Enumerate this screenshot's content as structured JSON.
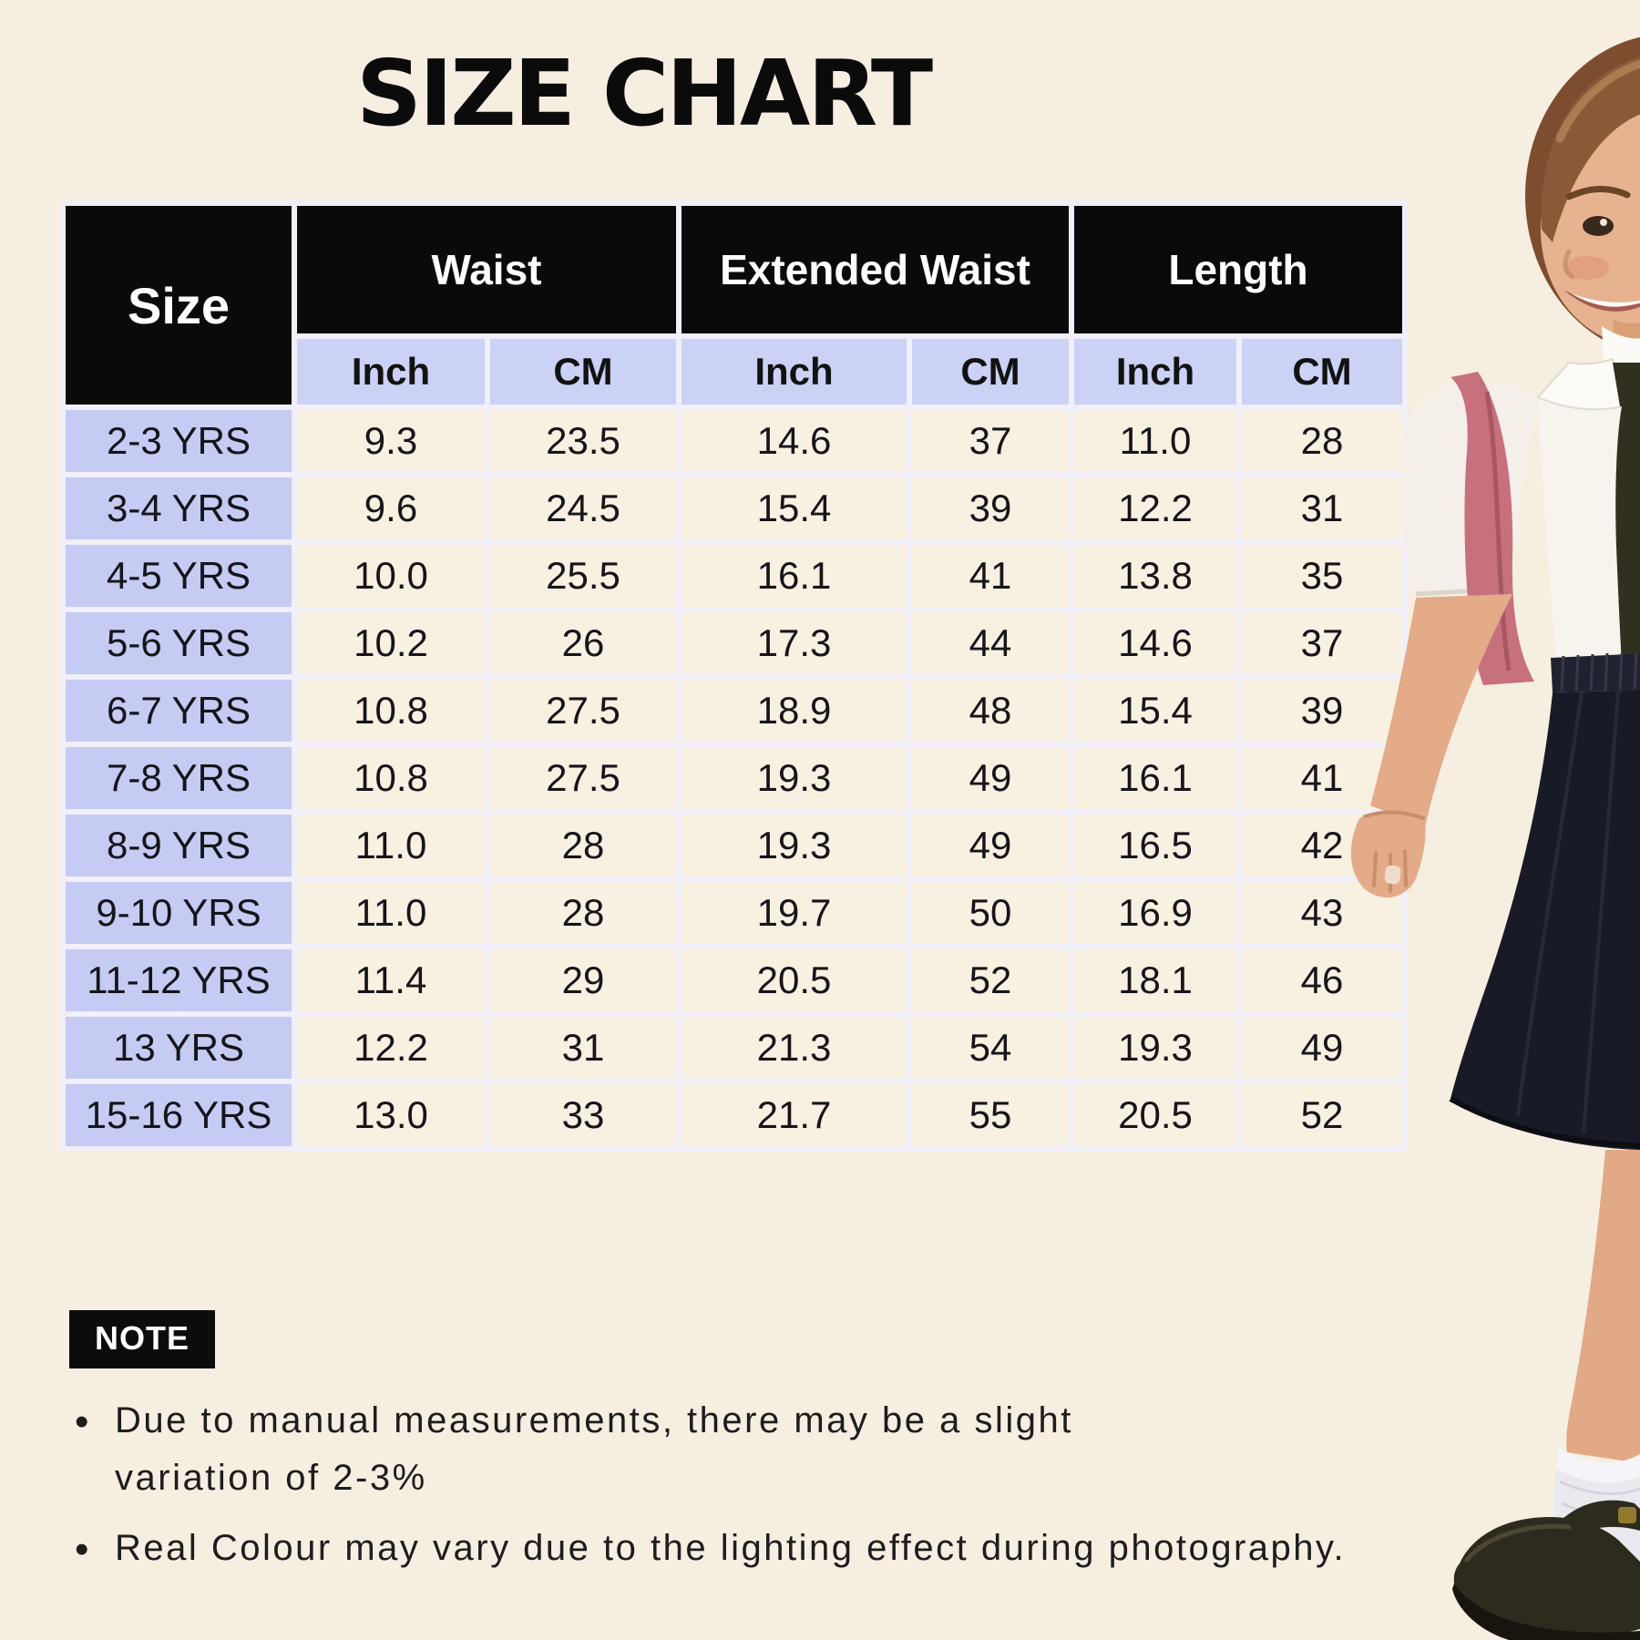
{
  "page": {
    "title": "SIZE CHART",
    "background_color": "#f6efe1"
  },
  "table": {
    "corner_label": "Size",
    "groups": [
      {
        "label": "Waist"
      },
      {
        "label": "Extended Waist"
      },
      {
        "label": "Length"
      }
    ],
    "units": [
      "Inch",
      "CM",
      "Inch",
      "CM",
      "Inch",
      "CM"
    ],
    "rows": [
      {
        "size": "2-3 YRS",
        "values": [
          "9.3",
          "23.5",
          "14.6",
          "37",
          "11.0",
          "28"
        ]
      },
      {
        "size": "3-4 YRS",
        "values": [
          "9.6",
          "24.5",
          "15.4",
          "39",
          "12.2",
          "31"
        ]
      },
      {
        "size": "4-5 YRS",
        "values": [
          "10.0",
          "25.5",
          "16.1",
          "41",
          "13.8",
          "35"
        ]
      },
      {
        "size": "5-6 YRS",
        "values": [
          "10.2",
          "26",
          "17.3",
          "44",
          "14.6",
          "37"
        ]
      },
      {
        "size": "6-7 YRS",
        "values": [
          "10.8",
          "27.5",
          "18.9",
          "48",
          "15.4",
          "39"
        ]
      },
      {
        "size": "7-8 YRS",
        "values": [
          "10.8",
          "27.5",
          "19.3",
          "49",
          "16.1",
          "41"
        ]
      },
      {
        "size": "8-9 YRS",
        "values": [
          "11.0",
          "28",
          "19.3",
          "49",
          "16.5",
          "42"
        ]
      },
      {
        "size": "9-10 YRS",
        "values": [
          "11.0",
          "28",
          "19.7",
          "50",
          "16.9",
          "43"
        ]
      },
      {
        "size": "11-12 YRS",
        "values": [
          "11.4",
          "29",
          "20.5",
          "52",
          "18.1",
          "46"
        ]
      },
      {
        "size": "13 YRS",
        "values": [
          "12.2",
          "31",
          "21.3",
          "54",
          "19.3",
          "49"
        ]
      },
      {
        "size": "15-16 YRS",
        "values": [
          "13.0",
          "33",
          "21.7",
          "55",
          "20.5",
          "52"
        ]
      }
    ],
    "colors": {
      "header_bg": "#0a0a0a",
      "header_text": "#ffffff",
      "unit_row_bg": "#ccd2f5",
      "size_column_bg": "#c5cbf3",
      "value_cell_bg": "#f8f1e1",
      "grid_gap": "#f1eff9"
    }
  },
  "note": {
    "label": "NOTE",
    "bullet": "•",
    "items": [
      "Due to manual measurements, there may be a slight variation of 2-3%",
      "Real Colour may vary due to the lighting effect during photography."
    ]
  },
  "photo": {
    "alt": "Smiling schoolgirl in a white shirt, dark tie and navy pleated skirt carrying a pink backpack, white socks and black shoes",
    "colors": {
      "skin": "#e5ad8a",
      "hair": "#855434",
      "shirt": "#f7f4ee",
      "tie": "#31301e",
      "backpack_strap": "#c7707e",
      "skirt": "#181b25",
      "sock": "#ebe9ef",
      "shoe": "#2d2a1e"
    }
  }
}
